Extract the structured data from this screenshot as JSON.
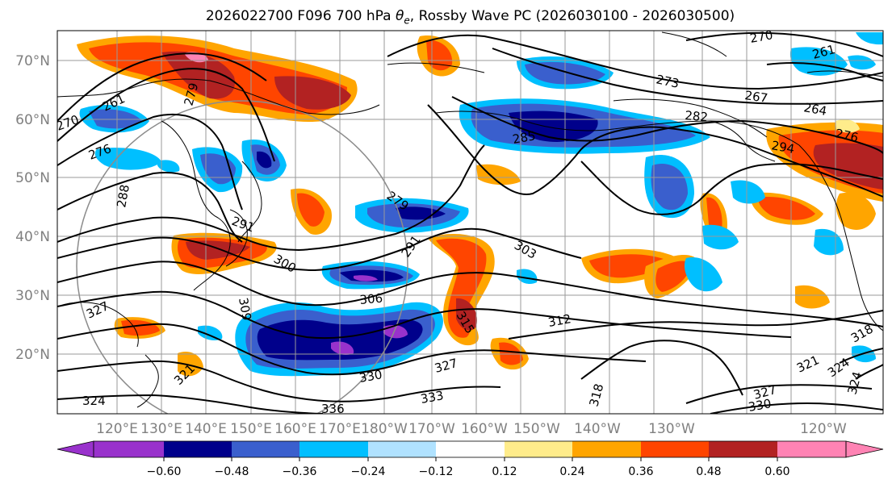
{
  "title": "2026022700 F096 700 hPa θe, Rossby Wave PC (2026030100 - 2026030500)",
  "title_parts": {
    "prefix": "2026022700 F096 700 hPa ",
    "theta": "θ",
    "sub": "e",
    "suffix": ", Rossby Wave PC (2026030100 - 2026030500)"
  },
  "latitude_labels": [
    "70°N",
    "60°N",
    "50°N",
    "40°N",
    "30°N",
    "20°N"
  ],
  "longitude_labels": [
    "120°E",
    "130°E",
    "140°E",
    "150°E",
    "160°E",
    "170°E",
    "180°W",
    "170°W",
    "160°W",
    "150°W",
    "140°W",
    "130°W",
    "120°W"
  ],
  "colorbar": {
    "ticks": [
      "−0.60",
      "−0.48",
      "−0.36",
      "−0.24",
      "−0.12",
      "0.12",
      "0.24",
      "0.36",
      "0.48",
      "0.60"
    ],
    "colors": [
      "#9932cc",
      "#00008b",
      "#3a5fcd",
      "#00bfff",
      "#b0e2ff",
      "#ffffff",
      "#ffec8b",
      "#ffa500",
      "#ff4500",
      "#b22222",
      "#ff83b4"
    ]
  },
  "contour_labels": [
    "270",
    "261",
    "273",
    "267",
    "264",
    "282",
    "276",
    "285",
    "294",
    "279",
    "279",
    "261",
    "276",
    "270",
    "288",
    "291",
    "300",
    "303",
    "291",
    "306",
    "309",
    "312",
    "315",
    "321",
    "324",
    "327",
    "330",
    "333",
    "336",
    "318",
    "318",
    "324",
    "327",
    "330",
    "321",
    "324",
    "327"
  ],
  "map": {
    "type": "contour-map",
    "field_lines": "700 hPa theta-e (K)",
    "field_fill": "Rossby Wave PC",
    "lat_range": [
      10,
      75
    ],
    "lon_range": [
      "120°E",
      "120°W"
    ],
    "background": "#ffffff",
    "land_outline": "#000000",
    "grid": true
  }
}
